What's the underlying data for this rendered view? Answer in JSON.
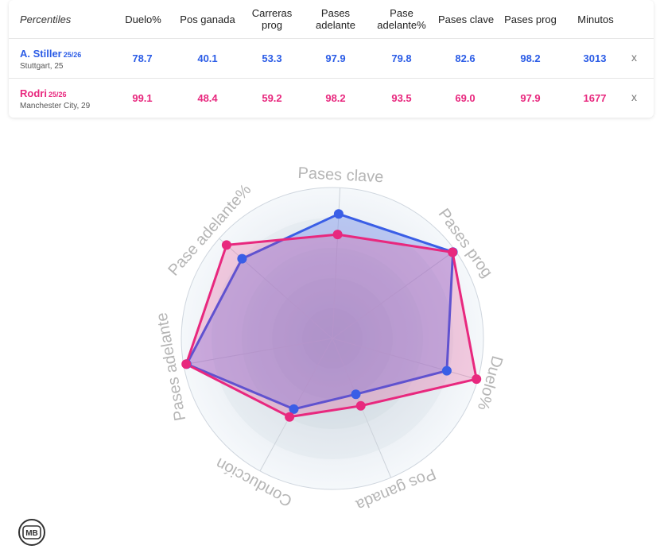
{
  "table": {
    "corner_label": "Percentiles",
    "columns": [
      "Duelo%",
      "Pos ganada",
      "Carreras prog",
      "Pases adelante",
      "Pase adelante%",
      "Pases clave",
      "Pases prog",
      "Minutos"
    ],
    "rows": [
      {
        "name": "A. Stiller",
        "season": "25/26",
        "team": "Stuttgart, 25",
        "values": [
          "78.7",
          "40.1",
          "53.3",
          "97.9",
          "79.8",
          "82.6",
          "98.2",
          "3013"
        ],
        "remove": "x"
      },
      {
        "name": "Rodri",
        "season": "25/26",
        "team": "Manchester City, 29",
        "values": [
          "99.1",
          "48.4",
          "59.2",
          "98.2",
          "93.5",
          "69.0",
          "97.9",
          "1677"
        ],
        "remove": "x"
      }
    ]
  },
  "colors": {
    "player1": "#3a5ee6",
    "player2": "#e8287e"
  },
  "logo_icon": "mb-logo-icon",
  "logo_text": "MB",
  "chart_data": {
    "type": "radar",
    "axes": [
      "Pases clave",
      "Pases prog",
      "Duelo%",
      "Pos ganada",
      "Conducción",
      "Pases adelante",
      "Pase adelante%"
    ],
    "range": [
      0,
      100
    ],
    "series": [
      {
        "name": "A. Stiller",
        "values": [
          82.6,
          98.2,
          78.7,
          40.1,
          53.3,
          97.9,
          79.8
        ]
      },
      {
        "name": "Rodri",
        "values": [
          69.0,
          97.9,
          99.1,
          48.4,
          59.2,
          98.2,
          93.5
        ]
      }
    ]
  }
}
